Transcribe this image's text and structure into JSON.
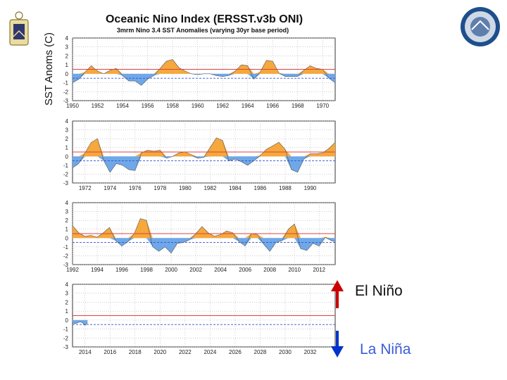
{
  "title": "Oceanic Nino Index (ERSST.v3b ONI)",
  "subtitle": "3mrm Nino 3.4 SST Anomalies (varying 30yr base period)",
  "ylabel": "SST Anoms (C)",
  "legend": {
    "el_nino": "El Niño",
    "la_nina": "La Niña",
    "el_nino_color": "#cc0000",
    "la_nina_color": "#0033cc"
  },
  "colors": {
    "positive_fill": "#f5a83c",
    "negative_fill": "#6fa8e8",
    "threshold_pos": "#e04040",
    "threshold_neg": "#3050d0"
  },
  "icons": {
    "left_logo": "naval-academy-crest-icon",
    "right_logo": "oceanography-seal-icon"
  },
  "chart_data": [
    {
      "type": "area",
      "title": "Oceanic Nino Index (ERSST.v3b ONI)",
      "subtitle": "3mrm Nino 3.4 SST Anomalies (varying 30yr base period)",
      "ylabel": "SST Anoms (C)",
      "ylim": [
        -3,
        4
      ],
      "yticks": [
        4,
        3,
        2,
        1,
        0,
        -1,
        -2,
        -3
      ],
      "thresholds": [
        0.5,
        -0.5
      ],
      "xticks": [
        "1950",
        "1952",
        "1954",
        "1956",
        "1958",
        "1960",
        "1962",
        "1964",
        "1966",
        "1968",
        "1970"
      ],
      "xlim": [
        1950,
        1971
      ],
      "series": [
        {
          "x": [
            1950.0,
            1950.5,
            1951.0,
            1951.5,
            1952.0,
            1952.5,
            1953.0,
            1953.5,
            1954.0,
            1954.5,
            1955.0,
            1955.5,
            1956.0,
            1956.5,
            1957.0,
            1957.5,
            1958.0,
            1958.5,
            1959.0,
            1959.5,
            1960.0,
            1960.5,
            1961.0,
            1961.5,
            1962.0,
            1962.5,
            1963.0,
            1963.5,
            1964.0,
            1964.5,
            1965.0,
            1965.5,
            1966.0,
            1966.5,
            1967.0,
            1967.5,
            1968.0,
            1968.5,
            1969.0,
            1969.5,
            1970.0,
            1970.5,
            1971.0
          ],
          "y": [
            -1.0,
            -0.6,
            0.2,
            0.9,
            0.3,
            0.0,
            0.4,
            0.6,
            -0.2,
            -0.8,
            -0.8,
            -1.3,
            -0.6,
            -0.2,
            0.6,
            1.4,
            1.6,
            0.7,
            0.3,
            0.0,
            -0.1,
            0.0,
            0.0,
            -0.2,
            -0.3,
            -0.2,
            0.3,
            1.0,
            0.9,
            -0.6,
            0.2,
            1.5,
            1.4,
            0.1,
            -0.3,
            -0.3,
            -0.3,
            0.4,
            0.9,
            0.6,
            0.5,
            -0.5,
            -1.0
          ]
        }
      ]
    },
    {
      "type": "area",
      "ylim": [
        -3,
        4
      ],
      "yticks": [
        4,
        3,
        2,
        1,
        0,
        -1,
        -2,
        -3
      ],
      "thresholds": [
        0.5,
        -0.5
      ],
      "xticks": [
        "1972",
        "1974",
        "1976",
        "1978",
        "1980",
        "1982",
        "1984",
        "1986",
        "1988",
        "1990"
      ],
      "xlim": [
        1971,
        1992
      ],
      "series": [
        {
          "x": [
            1971.0,
            1971.5,
            1972.0,
            1972.5,
            1973.0,
            1973.5,
            1974.0,
            1974.5,
            1975.0,
            1975.5,
            1976.0,
            1976.5,
            1977.0,
            1977.5,
            1978.0,
            1978.5,
            1979.0,
            1979.5,
            1980.0,
            1980.5,
            1981.0,
            1981.5,
            1982.0,
            1982.5,
            1983.0,
            1983.5,
            1984.0,
            1984.5,
            1985.0,
            1985.5,
            1986.0,
            1986.5,
            1987.0,
            1987.5,
            1988.0,
            1988.5,
            1989.0,
            1989.5,
            1990.0,
            1990.5,
            1991.0,
            1991.5,
            1992.0
          ],
          "y": [
            -1.3,
            -0.8,
            0.4,
            1.6,
            2.0,
            -0.5,
            -1.8,
            -0.8,
            -1.0,
            -1.5,
            -1.6,
            0.4,
            0.7,
            0.6,
            0.7,
            -0.2,
            0.0,
            0.4,
            0.5,
            0.2,
            -0.2,
            -0.1,
            1.0,
            2.1,
            1.8,
            -0.5,
            -0.3,
            -0.6,
            -1.0,
            -0.5,
            0.1,
            0.8,
            1.2,
            1.6,
            0.8,
            -1.5,
            -1.8,
            -0.3,
            0.3,
            0.3,
            0.4,
            0.9,
            1.6
          ]
        }
      ]
    },
    {
      "type": "area",
      "ylim": [
        -3,
        4
      ],
      "yticks": [
        4,
        3,
        2,
        1,
        0,
        -1,
        -2,
        -3
      ],
      "thresholds": [
        0.5,
        -0.5
      ],
      "xticks": [
        "1992",
        "1994",
        "1996",
        "1998",
        "2000",
        "2002",
        "2004",
        "2006",
        "2008",
        "2010",
        "2012"
      ],
      "xlim": [
        1992,
        2013.3
      ],
      "series": [
        {
          "x": [
            1992.0,
            1992.5,
            1993.0,
            1993.5,
            1994.0,
            1994.5,
            1995.0,
            1995.5,
            1996.0,
            1996.5,
            1997.0,
            1997.5,
            1998.0,
            1998.5,
            1999.0,
            1999.5,
            2000.0,
            2000.5,
            2001.0,
            2001.5,
            2002.0,
            2002.5,
            2003.0,
            2003.5,
            2004.0,
            2004.5,
            2005.0,
            2005.5,
            2006.0,
            2006.5,
            2007.0,
            2007.5,
            2008.0,
            2008.5,
            2009.0,
            2009.5,
            2010.0,
            2010.5,
            2011.0,
            2011.5,
            2012.0,
            2012.5,
            2013.0,
            2013.3
          ],
          "y": [
            1.4,
            0.6,
            0.2,
            0.3,
            0.1,
            0.6,
            1.2,
            -0.3,
            -0.9,
            -0.4,
            0.5,
            2.2,
            2.0,
            -1.0,
            -1.5,
            -1.0,
            -1.7,
            -0.6,
            -0.5,
            -0.2,
            0.5,
            1.3,
            0.6,
            0.2,
            0.4,
            0.8,
            0.6,
            -0.4,
            -0.9,
            0.5,
            0.4,
            -0.7,
            -1.5,
            -0.5,
            -0.3,
            1.0,
            1.6,
            -1.2,
            -1.4,
            -0.6,
            -0.9,
            0.1,
            -0.3,
            -0.4
          ]
        }
      ]
    },
    {
      "type": "area",
      "ylim": [
        -3,
        4
      ],
      "yticks": [
        4,
        3,
        2,
        1,
        0,
        -1,
        -2,
        -3
      ],
      "thresholds": [
        0.5,
        -0.5
      ],
      "xticks": [
        "2014",
        "2016",
        "2018",
        "2020",
        "2022",
        "2024",
        "2026",
        "2028",
        "2030",
        "2032"
      ],
      "xlim": [
        2013,
        2034
      ],
      "series": [
        {
          "x": [
            2013.0,
            2013.2,
            2013.4,
            2013.6,
            2013.8,
            2014.0,
            2014.2
          ],
          "y": [
            -0.3,
            -0.4,
            -0.3,
            -0.2,
            -0.3,
            -0.6,
            -0.3
          ]
        }
      ]
    }
  ]
}
